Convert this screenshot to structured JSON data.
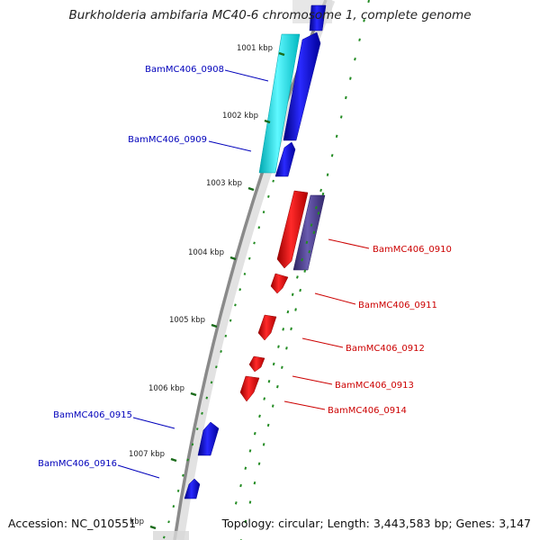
{
  "title": "Burkholderia ambifaria MC40-6 chromosome 1, complete genome",
  "accession": "Accession: NC_010551",
  "topology": "Topology: circular; Length: 3,443,583 bp; Genes: 3,147",
  "ruler": [
    "1001 kbp",
    "1002 kbp",
    "1003 kbp",
    "1004 kbp",
    "1005 kbp",
    "1006 kbp",
    "1007 kbp",
    "kbp"
  ],
  "colors": {
    "forward_gene": "#0000ee",
    "forward_gene_other": "#00e5ee",
    "reverse_gene": "#ee0000",
    "reverse_gene_other": "#4b3c8c",
    "forward_label": "#0000bb",
    "reverse_label": "#cc0000",
    "gc_skew_ticks": "#228b22"
  },
  "genes": [
    {
      "label": "BamMC406_0908",
      "strand": "forward",
      "color": "forward_label"
    },
    {
      "label": "BamMC406_0909",
      "strand": "forward",
      "color": "forward_label"
    },
    {
      "label": "BamMC406_0910",
      "strand": "reverse",
      "color": "reverse_label"
    },
    {
      "label": "BamMC406_0911",
      "strand": "reverse",
      "color": "reverse_label"
    },
    {
      "label": "BamMC406_0912",
      "strand": "reverse",
      "color": "reverse_label"
    },
    {
      "label": "BamMC406_0913",
      "strand": "reverse",
      "color": "reverse_label"
    },
    {
      "label": "BamMC406_0914",
      "strand": "reverse",
      "color": "reverse_label"
    },
    {
      "label": "BamMC406_0915",
      "strand": "forward",
      "color": "forward_label"
    },
    {
      "label": "BamMC406_0916",
      "strand": "forward",
      "color": "forward_label"
    }
  ]
}
